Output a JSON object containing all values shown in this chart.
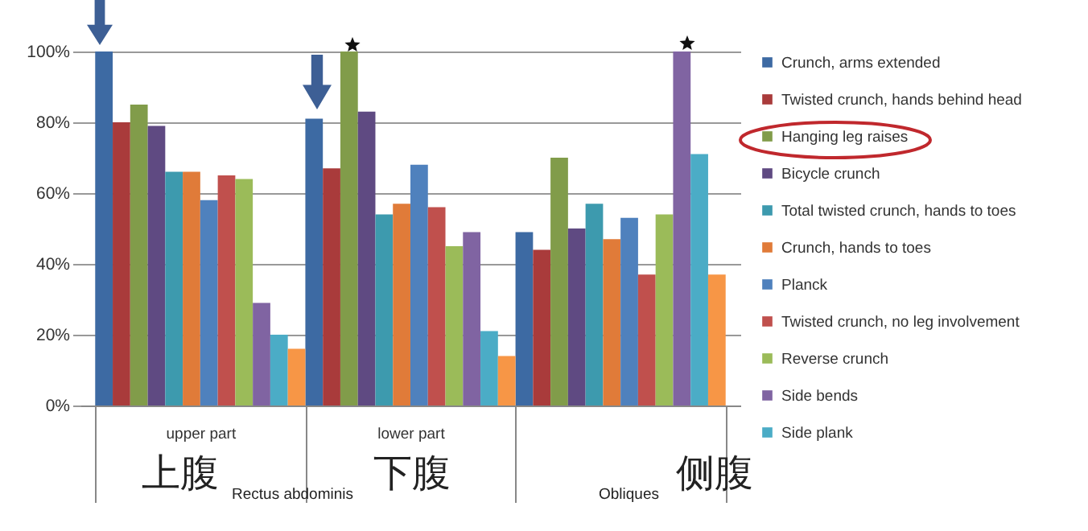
{
  "chart_data": {
    "type": "bar",
    "categories": [
      "upper part",
      "lower part",
      null
    ],
    "series": [
      {
        "name": "Crunch, arms extended",
        "color": "#3d6aa3",
        "values": [
          100,
          81,
          49
        ]
      },
      {
        "name": "Twisted crunch, hands behind head",
        "color": "#a93b3b",
        "values": [
          80,
          67,
          44
        ]
      },
      {
        "name": "Hanging leg raises",
        "color": "#819c4a",
        "values": [
          85,
          100,
          70
        ]
      },
      {
        "name": "Bicycle crunch",
        "color": "#5f4a82",
        "values": [
          79,
          83,
          50
        ]
      },
      {
        "name": "Total twisted crunch, hands to toes",
        "color": "#3d9aae",
        "values": [
          66,
          54,
          57
        ]
      },
      {
        "name": "Crunch, hands to toes",
        "color": "#e07b39",
        "values": [
          66,
          57,
          47
        ]
      },
      {
        "name": "Planck",
        "color": "#4f81bd",
        "values": [
          58,
          68,
          53
        ]
      },
      {
        "name": "Twisted crunch, no leg involvement",
        "color": "#c0504d",
        "values": [
          65,
          56,
          37
        ]
      },
      {
        "name": "Reverse crunch",
        "color": "#9bbb59",
        "values": [
          64,
          45,
          54
        ]
      },
      {
        "name": "Side bends",
        "color": "#8064a2",
        "values": [
          29,
          49,
          100
        ]
      },
      {
        "name": "Side plank",
        "color": "#4bacc6",
        "values": [
          20,
          21,
          71
        ]
      },
      {
        "color": "#f79646",
        "values": [
          16,
          14,
          37
        ]
      }
    ],
    "ylim": [
      0,
      100
    ],
    "yticks": [
      {
        "value": 0,
        "label": "0%"
      },
      {
        "value": 20,
        "label": "20%"
      },
      {
        "value": 40,
        "label": "40%"
      },
      {
        "value": 60,
        "label": "60%"
      },
      {
        "value": 80,
        "label": "80%"
      },
      {
        "value": 100,
        "label": "100%"
      }
    ],
    "grid": "y",
    "legend": "right",
    "annotations": [
      "上腹",
      "Rectus abdominis",
      "下腹",
      "Obliques",
      "侧腹"
    ]
  }
}
